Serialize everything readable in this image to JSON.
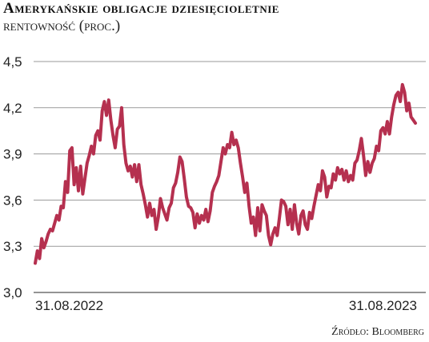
{
  "chart_data": {
    "type": "line",
    "title": "Amerykańskie obligacje dziesięcioletnie",
    "subtitle": "rentowność (proc.)",
    "ylabel": "",
    "xlabel": "",
    "ylim": [
      3.0,
      4.5
    ],
    "yticks": [
      "4,5",
      "4,2",
      "3,9",
      "3,6",
      "3,3",
      "3,0"
    ],
    "ytick_values": [
      4.5,
      4.2,
      3.9,
      3.6,
      3.3,
      3.0
    ],
    "xticks": [
      "31.08.2022",
      "31.08.2023"
    ],
    "grid": true,
    "line_color": "#b5304f",
    "series": [
      {
        "values": [
          3.19,
          3.27,
          3.22,
          3.35,
          3.29,
          3.33,
          3.38,
          3.41,
          3.4,
          3.45,
          3.5,
          3.47,
          3.56,
          3.55,
          3.72,
          3.65,
          3.92,
          3.94,
          3.7,
          3.81,
          3.66,
          3.82,
          3.64,
          3.74,
          3.84,
          3.89,
          3.95,
          3.9,
          4.02,
          4.05,
          3.99,
          4.18,
          4.24,
          4.15,
          4.25,
          4.12,
          4.02,
          3.94,
          4.06,
          4.08,
          4.2,
          3.96,
          3.84,
          3.79,
          3.82,
          3.75,
          3.83,
          3.72,
          3.83,
          3.7,
          3.64,
          3.57,
          3.49,
          3.58,
          3.5,
          3.54,
          3.41,
          3.49,
          3.61,
          3.55,
          3.51,
          3.47,
          3.55,
          3.58,
          3.68,
          3.71,
          3.78,
          3.88,
          3.85,
          3.74,
          3.62,
          3.56,
          3.55,
          3.52,
          3.42,
          3.51,
          3.45,
          3.5,
          3.47,
          3.54,
          3.46,
          3.53,
          3.65,
          3.69,
          3.72,
          3.76,
          3.85,
          3.94,
          3.9,
          3.96,
          3.94,
          4.04,
          3.96,
          3.99,
          3.94,
          3.84,
          3.75,
          3.65,
          3.71,
          3.56,
          3.45,
          3.49,
          3.37,
          3.55,
          3.4,
          3.57,
          3.53,
          3.5,
          3.37,
          3.31,
          3.38,
          3.42,
          3.37,
          3.48,
          3.6,
          3.59,
          3.56,
          3.44,
          3.54,
          3.41,
          3.57,
          3.45,
          3.38,
          3.5,
          3.53,
          3.44,
          3.41,
          3.52,
          3.48,
          3.56,
          3.63,
          3.7,
          3.66,
          3.79,
          3.75,
          3.62,
          3.69,
          3.68,
          3.77,
          3.73,
          3.81,
          3.77,
          3.8,
          3.73,
          3.79,
          3.72,
          3.76,
          3.73,
          3.84,
          3.86,
          3.92,
          4.0,
          3.89,
          3.76,
          3.85,
          3.78,
          3.84,
          3.87,
          3.95,
          3.92,
          4.05,
          4.07,
          4.03,
          4.11,
          4.03,
          4.14,
          4.22,
          4.28,
          4.3,
          4.24,
          4.35,
          4.3,
          4.18,
          4.23,
          4.14,
          4.12,
          4.1
        ]
      }
    ]
  },
  "source": "Źródło: Bloomberg"
}
